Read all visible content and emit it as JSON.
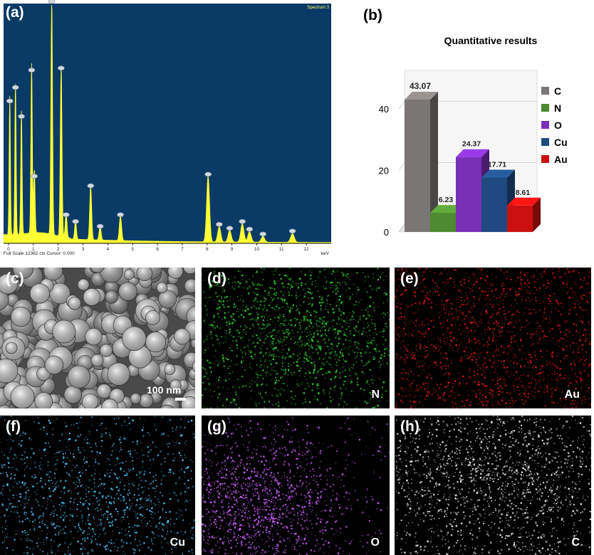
{
  "panels": {
    "a": {
      "label": "(a)"
    },
    "b": {
      "label": "(b)"
    },
    "c": {
      "label": "(c)",
      "scale_bar": "100 nm"
    },
    "d": {
      "label": "(d)",
      "element": "N"
    },
    "e": {
      "label": "(e)",
      "element": "Au"
    },
    "f": {
      "label": "(f)",
      "element": "Cu"
    },
    "g": {
      "label": "(g)",
      "element": "O"
    },
    "h": {
      "label": "(h)",
      "element": "C"
    }
  },
  "map_colors": {
    "N": "#2fd02f",
    "Au": "#e01818",
    "Cu": "#4fc8ff",
    "O": "#d060ff",
    "C": "#e8e8e8"
  },
  "chart_data": [
    {
      "type": "line",
      "panel": "a",
      "title": "",
      "corner_text": "Spectrum 3",
      "footer": "Full Scale 12362 cts Cursor: 0.000",
      "xunit": "keV",
      "xlim": [
        -0.2,
        13
      ],
      "xticks": [
        0,
        1,
        2,
        3,
        4,
        5,
        6,
        7,
        8,
        9,
        10,
        11,
        12
      ],
      "ylim": [
        0,
        12362
      ],
      "colors": {
        "background": "#0b3a66",
        "trace": "#ffff33"
      },
      "peaks": [
        {
          "x": 0.05,
          "y": 7200
        },
        {
          "x": 0.28,
          "y": 7900
        },
        {
          "x": 0.52,
          "y": 6400
        },
        {
          "x": 0.93,
          "y": 8800
        },
        {
          "x": 1.04,
          "y": 3300
        },
        {
          "x": 1.74,
          "y": 12362
        },
        {
          "x": 2.12,
          "y": 8900
        },
        {
          "x": 2.32,
          "y": 1300
        },
        {
          "x": 2.7,
          "y": 950
        },
        {
          "x": 3.31,
          "y": 2800
        },
        {
          "x": 3.69,
          "y": 700
        },
        {
          "x": 4.51,
          "y": 1300
        },
        {
          "x": 8.04,
          "y": 3400
        },
        {
          "x": 8.49,
          "y": 800
        },
        {
          "x": 8.91,
          "y": 600
        },
        {
          "x": 9.42,
          "y": 950
        },
        {
          "x": 9.71,
          "y": 550
        },
        {
          "x": 10.25,
          "y": 300
        },
        {
          "x": 11.44,
          "y": 450
        }
      ]
    },
    {
      "type": "bar",
      "panel": "b",
      "title": "Quantitative results",
      "categories": [
        "C",
        "N",
        "O",
        "Cu",
        "Au"
      ],
      "values": [
        43.07,
        6.23,
        24.37,
        17.71,
        8.61
      ],
      "value_labels": [
        "43.07",
        "6.23",
        "24.37",
        "17.71",
        "8.61"
      ],
      "colors": [
        "#7a7675",
        "#4e8a2f",
        "#7a2fb8",
        "#1f4a80",
        "#cc1010"
      ],
      "ylim": [
        0,
        50
      ],
      "yticks": [
        0,
        20,
        40
      ],
      "legend": "right"
    }
  ]
}
